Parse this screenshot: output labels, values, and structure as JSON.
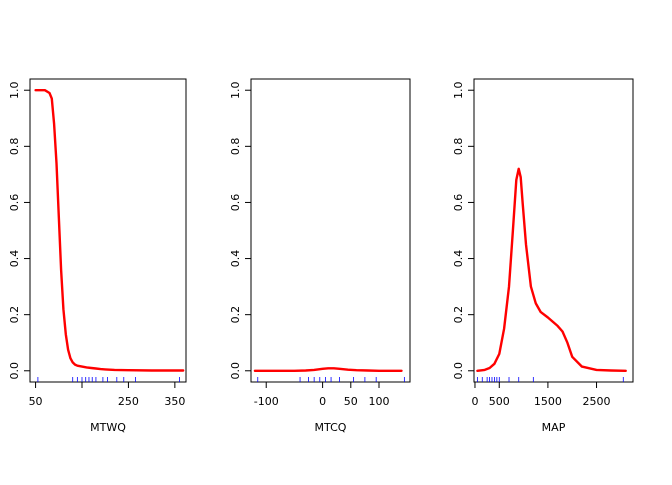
{
  "chart_data": [
    {
      "type": "line",
      "xlabel": "MTWQ",
      "ylabel": "",
      "xlim": [
        38,
        374
      ],
      "ylim": [
        -0.04,
        1.04
      ],
      "xticks": [
        50,
        150,
        250,
        350
      ],
      "xtick_labels": [
        "50",
        "",
        "250",
        "350"
      ],
      "yticks": [
        0.0,
        0.2,
        0.4,
        0.6,
        0.8,
        1.0
      ],
      "ytick_labels": [
        "0.0",
        "0.2",
        "0.4",
        "0.6",
        "0.8",
        "1.0"
      ],
      "series": [
        {
          "color": "#ff0000",
          "x": [
            50,
            60,
            70,
            80,
            85,
            90,
            95,
            100,
            105,
            110,
            115,
            120,
            125,
            130,
            135,
            140,
            150,
            160,
            170,
            180,
            190,
            200,
            220,
            250,
            300,
            350,
            368
          ],
          "y": [
            1.0,
            1.0,
            1.0,
            0.99,
            0.97,
            0.88,
            0.74,
            0.55,
            0.36,
            0.22,
            0.13,
            0.075,
            0.045,
            0.03,
            0.022,
            0.018,
            0.015,
            0.012,
            0.01,
            0.008,
            0.006,
            0.005,
            0.003,
            0.002,
            0.001,
            0.001,
            0.001
          ]
        }
      ],
      "rug": {
        "color": "#0000ff",
        "x": [
          55,
          130,
          140,
          150,
          158,
          165,
          172,
          180,
          195,
          205,
          225,
          240,
          265,
          360
        ]
      },
      "grid": false,
      "legend": "none"
    },
    {
      "type": "line",
      "xlabel": "MTCQ",
      "ylabel": "",
      "xlim": [
        -127,
        155
      ],
      "ylim": [
        -0.04,
        1.04
      ],
      "xticks": [
        -100,
        0,
        50,
        100
      ],
      "xtick_labels": [
        "-100",
        "0",
        "50",
        "100"
      ],
      "yticks": [
        0.0,
        0.2,
        0.4,
        0.6,
        0.8,
        1.0
      ],
      "ytick_labels": [
        "0.0",
        "0.2",
        "0.4",
        "0.6",
        "0.8",
        "1.0"
      ],
      "series": [
        {
          "color": "#ff0000",
          "x": [
            -120,
            -80,
            -50,
            -30,
            -15,
            0,
            10,
            20,
            30,
            45,
            60,
            80,
            100,
            140
          ],
          "y": [
            0.0,
            0.0,
            0.0,
            0.001,
            0.003,
            0.007,
            0.009,
            0.009,
            0.007,
            0.004,
            0.002,
            0.001,
            0.0,
            0.0
          ]
        }
      ],
      "rug": {
        "color": "#0000ff",
        "x": [
          -115,
          -40,
          -25,
          -15,
          -5,
          5,
          15,
          30,
          55,
          75,
          95,
          145
        ]
      },
      "grid": false,
      "legend": "none"
    },
    {
      "type": "line",
      "xlabel": "MAP",
      "ylabel": "",
      "xlim": [
        -20,
        3250
      ],
      "ylim": [
        -0.04,
        1.04
      ],
      "xticks": [
        0,
        500,
        1500,
        2500
      ],
      "xtick_labels": [
        "0",
        "500",
        "1500",
        "2500"
      ],
      "yticks": [
        0.0,
        0.2,
        0.4,
        0.6,
        0.8,
        1.0
      ],
      "ytick_labels": [
        "0.0",
        "0.2",
        "0.4",
        "0.6",
        "0.8",
        "1.0"
      ],
      "series": [
        {
          "color": "#ff0000",
          "x": [
            50,
            200,
            300,
            400,
            500,
            600,
            700,
            780,
            850,
            900,
            940,
            980,
            1050,
            1150,
            1250,
            1350,
            1500,
            1700,
            1800,
            1900,
            2000,
            2200,
            2500,
            2800,
            3100
          ],
          "y": [
            0.0,
            0.003,
            0.01,
            0.025,
            0.06,
            0.15,
            0.3,
            0.5,
            0.68,
            0.72,
            0.69,
            0.6,
            0.45,
            0.3,
            0.24,
            0.21,
            0.19,
            0.16,
            0.14,
            0.1,
            0.05,
            0.015,
            0.003,
            0.001,
            0.0
          ]
        }
      ],
      "rug": {
        "color": "#0000ff",
        "x": [
          50,
          150,
          250,
          300,
          350,
          400,
          450,
          500,
          700,
          900,
          1200,
          3050
        ]
      },
      "grid": false,
      "legend": "none"
    }
  ]
}
